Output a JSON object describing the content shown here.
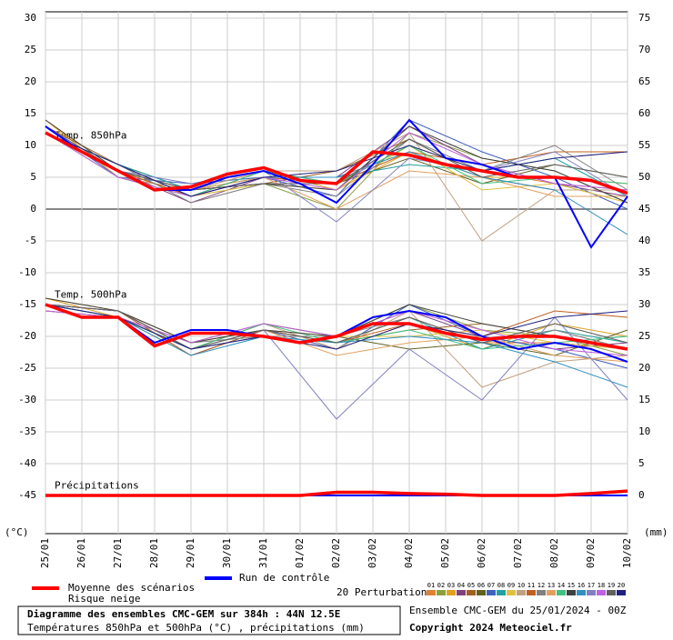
{
  "chart_data": {
    "type": "line",
    "left_unit": "(°C)",
    "right_unit": "(mm)",
    "panel_labels": [
      "Temp. 850hPa",
      "Temp. 500hPa",
      "Précipitations"
    ],
    "xlim": [
      0,
      16
    ],
    "xticks": [
      {
        "value": 0,
        "label": "25/01"
      },
      {
        "value": 1,
        "label": "26/01"
      },
      {
        "value": 2,
        "label": "27/01"
      },
      {
        "value": 3,
        "label": "28/01"
      },
      {
        "value": 4,
        "label": "29/01"
      },
      {
        "value": 5,
        "label": "30/01"
      },
      {
        "value": 6,
        "label": "31/01"
      },
      {
        "value": 7,
        "label": "01/02"
      },
      {
        "value": 8,
        "label": "02/02"
      },
      {
        "value": 9,
        "label": "03/02"
      },
      {
        "value": 10,
        "label": "04/02"
      },
      {
        "value": 11,
        "label": "05/02"
      },
      {
        "value": 12,
        "label": "06/02"
      },
      {
        "value": 13,
        "label": "07/02"
      },
      {
        "value": 14,
        "label": "08/02"
      },
      {
        "value": 15,
        "label": "09/02"
      },
      {
        "value": 16,
        "label": "10/02"
      }
    ],
    "ylim": [
      -51,
      31
    ],
    "yticks": [
      -45,
      -40,
      -35,
      -30,
      -25,
      -20,
      -15,
      -10,
      -5,
      0,
      5,
      10,
      15,
      20,
      25,
      30
    ],
    "y2lim": [
      -6,
      76
    ],
    "y2ticks": [
      0,
      5,
      10,
      15,
      20,
      25,
      30,
      35,
      40,
      45,
      50,
      55,
      60,
      65,
      70,
      75
    ],
    "grid": true,
    "main_x": [
      0,
      1,
      2,
      3,
      4,
      5,
      6,
      7,
      8,
      9,
      10,
      11,
      12,
      13,
      14,
      15,
      16
    ],
    "series": [
      {
        "name": "Moyenne des scénarios",
        "color": "#ff0000",
        "t850": [
          12,
          9,
          6,
          3,
          3.5,
          5.5,
          6.5,
          4.5,
          4,
          9,
          8.5,
          7,
          6,
          5,
          5,
          4.5,
          2.5
        ],
        "t500": [
          -15,
          -17,
          -17,
          -21.5,
          -19.5,
          -19.5,
          -20,
          -21,
          -20,
          -18,
          -18,
          -19.5,
          -20.5,
          -20,
          -20,
          -21,
          -22
        ],
        "precip": [
          0,
          0,
          0,
          0,
          0,
          0,
          0,
          0,
          0.5,
          0.5,
          0.3,
          0.2,
          0,
          0,
          0,
          0.3,
          0.7
        ]
      },
      {
        "name": "Run de contrôle",
        "color": "#0000ff",
        "t850": [
          13,
          9,
          6,
          3,
          3,
          5,
          6,
          4,
          1,
          7,
          14,
          8,
          7,
          5,
          5,
          -6,
          2
        ],
        "t500": [
          -15,
          -17,
          -17,
          -21,
          -19,
          -19,
          -20,
          -21,
          -20,
          -17,
          -16,
          -17,
          -20,
          -22,
          -21,
          -22,
          -24
        ],
        "precip": [
          0,
          0,
          0,
          0,
          0,
          0,
          0,
          0,
          0,
          0,
          0,
          0,
          0,
          0,
          0,
          0,
          0
        ]
      }
    ],
    "snow_label": "Risque neige",
    "perturbations_label": "20 Perturbations",
    "perturbation_x": [
      0,
      2,
      4,
      6,
      8,
      10,
      12,
      14,
      16
    ],
    "perturbations": [
      {
        "name": "01",
        "color": "#e08030",
        "t850": [
          13,
          6,
          3,
          5,
          4,
          10,
          6,
          4,
          3
        ],
        "t500": [
          -15,
          -17,
          -22,
          -19,
          -21,
          -17,
          -21,
          -21,
          -22
        ]
      },
      {
        "name": "02",
        "color": "#8aa040",
        "t850": [
          12,
          7,
          2,
          4,
          0,
          12,
          8,
          6,
          1
        ],
        "t500": [
          -15,
          -16,
          -21,
          -18,
          -20,
          -15,
          -19,
          -20,
          -23
        ]
      },
      {
        "name": "03",
        "color": "#e0a020",
        "t850": [
          14,
          5,
          3,
          6,
          3,
          9,
          5,
          5,
          4
        ],
        "t500": [
          -14,
          -17,
          -23,
          -19,
          -22,
          -18,
          -22,
          -18,
          -20
        ]
      },
      {
        "name": "04",
        "color": "#804080",
        "t850": [
          12,
          6,
          1,
          5,
          5,
          13,
          7,
          4,
          2
        ],
        "t500": [
          -15,
          -16,
          -22,
          -20,
          -20,
          -16,
          -20,
          -22,
          -21
        ]
      },
      {
        "name": "05",
        "color": "#a06020",
        "t850": [
          13,
          7,
          3,
          4,
          6,
          11,
          5,
          3,
          3
        ],
        "t500": [
          -15,
          -17,
          -21,
          -19,
          -21,
          -19,
          -18,
          -20,
          -22
        ]
      },
      {
        "name": "06",
        "color": "#606020",
        "t850": [
          12,
          6,
          2,
          6,
          4,
          8,
          4,
          7,
          5
        ],
        "t500": [
          -16,
          -17,
          -22,
          -18,
          -20,
          -22,
          -21,
          -23,
          -19
        ]
      },
      {
        "name": "07",
        "color": "#4060c0",
        "t850": [
          13,
          5,
          4,
          5,
          2,
          14,
          9,
          5,
          0
        ],
        "t500": [
          -15,
          -16,
          -23,
          -19,
          -22,
          -15,
          -20,
          -22,
          -25
        ]
      },
      {
        "name": "08",
        "color": "#20a0a0",
        "t850": [
          12,
          7,
          3,
          5,
          5,
          7,
          6,
          8,
          2
        ],
        "t500": [
          -15,
          -17,
          -22,
          -20,
          -21,
          -17,
          -22,
          -19,
          -21
        ]
      },
      {
        "name": "09",
        "color": "#e0c040",
        "t850": [
          14,
          6,
          2,
          4,
          3,
          10,
          3,
          4,
          1
        ],
        "t500": [
          -14,
          -16,
          -21,
          -19,
          -20,
          -20,
          -19,
          -21,
          -22
        ]
      },
      {
        "name": "10",
        "color": "#c0a080",
        "t850": [
          12,
          5,
          3,
          6,
          6,
          12,
          -5,
          3,
          3
        ],
        "t500": [
          -15,
          -17,
          -22,
          -18,
          -22,
          -16,
          -28,
          -24,
          -23
        ]
      },
      {
        "name": "11",
        "color": "#c06020",
        "t850": [
          13,
          6,
          2,
          5,
          4,
          9,
          7,
          9,
          9
        ],
        "t500": [
          -15,
          -16,
          -23,
          -19,
          -21,
          -18,
          -20,
          -16,
          -17
        ]
      },
      {
        "name": "12",
        "color": "#808080",
        "t850": [
          12,
          7,
          1,
          4,
          2,
          11,
          6,
          10,
          3
        ],
        "t500": [
          -16,
          -17,
          -21,
          -20,
          -20,
          -17,
          -21,
          -19,
          -22
        ]
      },
      {
        "name": "13",
        "color": "#e0a060",
        "t850": [
          13,
          6,
          3,
          5,
          0,
          6,
          5,
          2,
          2
        ],
        "t500": [
          -15,
          -16,
          -22,
          -19,
          -23,
          -21,
          -20,
          -23,
          -24
        ]
      },
      {
        "name": "14",
        "color": "#40c080",
        "t850": [
          12,
          5,
          2,
          6,
          4,
          10,
          4,
          5,
          4
        ],
        "t500": [
          -15,
          -17,
          -22,
          -18,
          -21,
          -19,
          -22,
          -21,
          -20
        ]
      },
      {
        "name": "15",
        "color": "#404040",
        "t850": [
          14,
          6,
          3,
          4,
          3,
          13,
          8,
          6,
          1
        ],
        "t500": [
          -14,
          -16,
          -21,
          -19,
          -20,
          -15,
          -18,
          -20,
          -22
        ]
      },
      {
        "name": "16",
        "color": "#3090c0",
        "t850": [
          12,
          7,
          2,
          5,
          5,
          9,
          5,
          3,
          -4
        ],
        "t500": [
          -15,
          -17,
          -23,
          -20,
          -21,
          -20,
          -21,
          -24,
          -28
        ]
      },
      {
        "name": "17",
        "color": "#8080c0",
        "t850": [
          13,
          6,
          4,
          6,
          -2,
          8,
          6,
          9,
          2
        ],
        "t500": [
          -15,
          -16,
          -22,
          -19,
          -33,
          -22,
          -30,
          -17,
          -30
        ]
      },
      {
        "name": "18",
        "color": "#c060e0",
        "t850": [
          12,
          5,
          2,
          5,
          3,
          12,
          7,
          4,
          3
        ],
        "t500": [
          -16,
          -17,
          -21,
          -18,
          -20,
          -16,
          -19,
          -22,
          -23
        ]
      },
      {
        "name": "19",
        "color": "#606060",
        "t850": [
          13,
          6,
          3,
          4,
          4,
          11,
          5,
          7,
          5
        ],
        "t500": [
          -15,
          -16,
          -22,
          -19,
          -21,
          -17,
          -21,
          -18,
          -21
        ]
      },
      {
        "name": "20",
        "color": "#202080",
        "t850": [
          12,
          7,
          2,
          5,
          6,
          10,
          6,
          8,
          9
        ],
        "t500": [
          -15,
          -17,
          -22,
          -20,
          -22,
          -18,
          -20,
          -17,
          -16
        ]
      }
    ],
    "footer": {
      "title": "Diagramme des ensembles CMC-GEM sur 384h : 44N 12.5E",
      "subtitle": "Températures 850hPa et 500hPa (°C) , précipitations (mm)",
      "run": "Ensemble CMC-GEM du 25/01/2024 - 00Z",
      "copyright": "Copyright 2024 Meteociel.fr"
    }
  }
}
